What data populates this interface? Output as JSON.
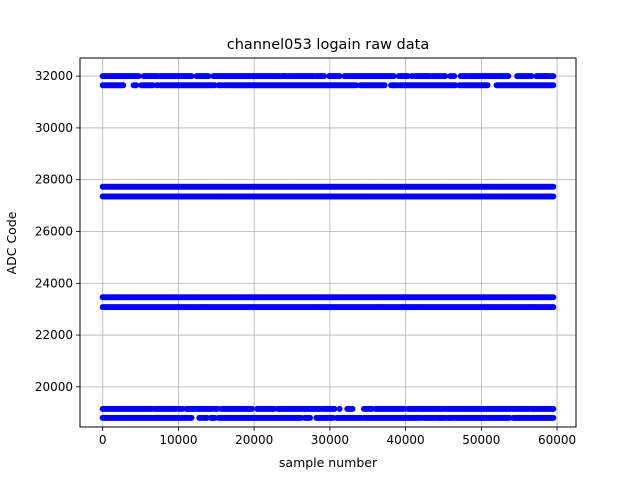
{
  "chart_data": {
    "type": "scatter",
    "title": "channel053 logain raw data",
    "xlabel": "sample number",
    "ylabel": "ADC Code",
    "xlim": [
      -3000,
      62500
    ],
    "ylim": [
      18450,
      32700
    ],
    "x_ticks": [
      0,
      10000,
      20000,
      30000,
      40000,
      50000,
      60000
    ],
    "y_ticks": [
      20000,
      22000,
      24000,
      26000,
      28000,
      30000,
      32000
    ],
    "x_tick_labels": [
      "0",
      "10000",
      "20000",
      "30000",
      "40000",
      "50000",
      "60000"
    ],
    "y_tick_labels": [
      "20000",
      "22000",
      "24000",
      "26000",
      "28000",
      "30000",
      "32000"
    ],
    "grid": true,
    "x_range_of_data": [
      0,
      59500
    ],
    "levels": [
      {
        "y": 32000,
        "coverage": "intermittent"
      },
      {
        "y": 31650,
        "coverage": "intermittent"
      },
      {
        "y": 27730,
        "coverage": "continuous"
      },
      {
        "y": 27350,
        "coverage": "mostly-continuous"
      },
      {
        "y": 23460,
        "coverage": "continuous"
      },
      {
        "y": 23080,
        "coverage": "continuous"
      },
      {
        "y": 19150,
        "coverage": "intermittent"
      },
      {
        "y": 18800,
        "coverage": "intermittent"
      }
    ],
    "marker_color": "#0000ff"
  }
}
